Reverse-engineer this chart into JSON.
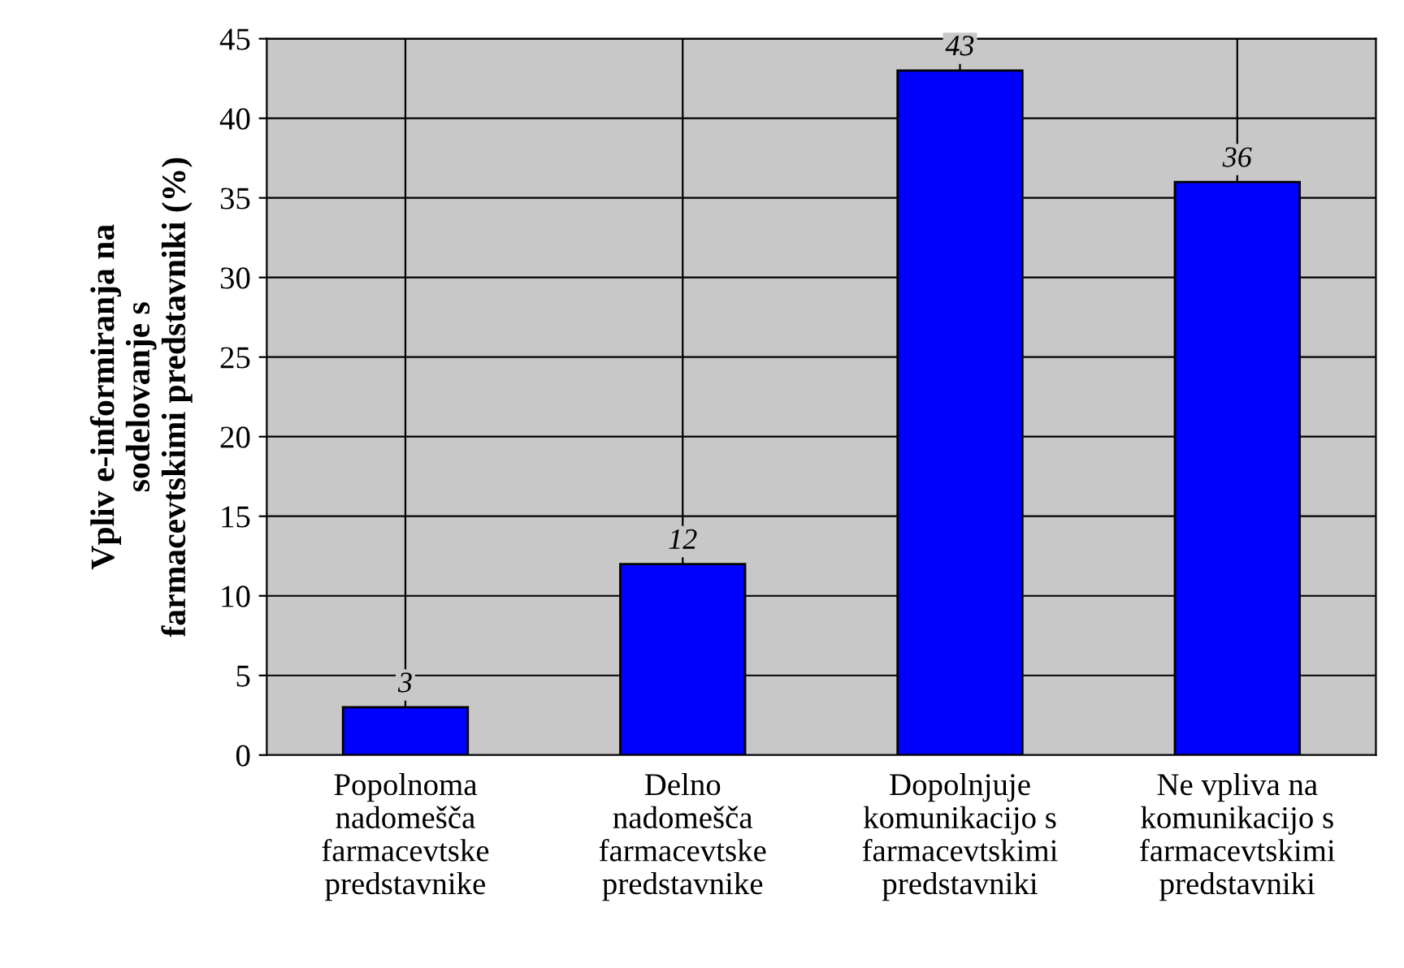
{
  "chart_data": {
    "type": "bar",
    "ylabel": "Vpliv e-informiranja na\nsodelovanje s\nfarmacevtskimi predstavniki (%)",
    "categories": [
      "Popolnoma\nnadomešča\nfarmacevtske\npredstavnike",
      "Delno\nnadomešča\nfarmacevtske\npredstavnike",
      "Dopolnjuje\nkomunikacijo s\nfarmacevtskimi\npredstavniki",
      "Ne vpliva na\nkomunikacijo s\nfarmacevtskimi\npredstavniki"
    ],
    "values": [
      3,
      12,
      43,
      36
    ],
    "color": "#0000ff",
    "data_labels": true,
    "ylim": [
      0,
      45
    ],
    "yticks": [
      0,
      5,
      10,
      15,
      20,
      25,
      30,
      35,
      40,
      45
    ],
    "grid": true
  }
}
